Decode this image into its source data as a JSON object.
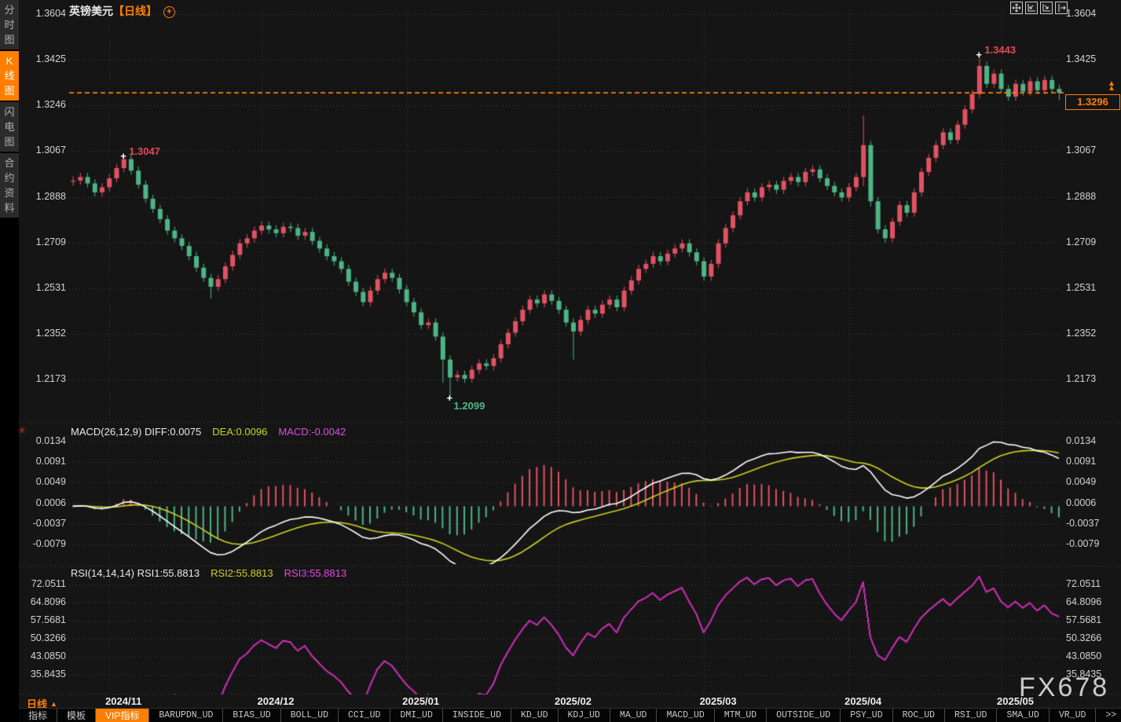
{
  "title": {
    "symbol": "英镑美元",
    "period_tag": "【日线】"
  },
  "sidebar": {
    "items": [
      {
        "name": "time-chart",
        "label": "分时图",
        "selected": false
      },
      {
        "name": "kline-chart",
        "label": "K线图",
        "selected": true
      },
      {
        "name": "lightning-chart",
        "label": "闪电图",
        "selected": false
      },
      {
        "name": "contract-info",
        "label": "合约资料",
        "selected": false
      }
    ]
  },
  "header_icons": [
    "move-tool",
    "fit-left",
    "fit-right",
    "shift-right"
  ],
  "price_axis": {
    "labels": [
      "1.3604",
      "1.3425",
      "1.3246",
      "1.3067",
      "1.2888",
      "1.2709",
      "1.2531",
      "1.2352",
      "1.2173"
    ]
  },
  "annotations": {
    "high1": "1.3047",
    "high2": "1.3443",
    "low": "1.2099",
    "last_price": "1.3296"
  },
  "macd": {
    "label": "MACD(26,12,9)",
    "diff_label": "DIFF:0.0075",
    "dea_label": "DEA:0.0096",
    "macd_label": "MACD:-0.0042",
    "axis": [
      "0.0134",
      "0.0091",
      "0.0049",
      "0.0006",
      "-0.0037",
      "-0.0079"
    ]
  },
  "rsi": {
    "label": "RSI(14,14,14)",
    "rsi1_label": "RSI1:55.8813",
    "rsi2_label": "RSI2:55.8813",
    "rsi3_label": "RSI3:55.8813",
    "axis": [
      "72.0511",
      "64.8096",
      "57.5681",
      "50.3266",
      "43.0850",
      "35.8435"
    ]
  },
  "x_axis": {
    "labels": [
      "2024/11",
      "2024/12",
      "2025/01",
      "2025/02",
      "2025/03",
      "2025/04",
      "2025/05"
    ],
    "candle_indices": [
      7,
      28,
      48,
      69,
      89,
      109,
      130
    ]
  },
  "bottom": {
    "period_label": "日线",
    "period_arrow": "▲",
    "tabs": [
      {
        "label": "指标",
        "selected": false,
        "mono": false
      },
      {
        "label": "模板",
        "selected": false,
        "mono": false
      },
      {
        "label": "VIP指标",
        "selected": true,
        "mono": false
      },
      {
        "label": "BARUPDN_UD"
      },
      {
        "label": "BIAS_UD"
      },
      {
        "label": "BOLL_UD"
      },
      {
        "label": "CCI_UD"
      },
      {
        "label": "DMI_UD"
      },
      {
        "label": "INSIDE_UD"
      },
      {
        "label": "KD_UD"
      },
      {
        "label": "KDJ_UD"
      },
      {
        "label": "MA_UD"
      },
      {
        "label": "MACD_UD"
      },
      {
        "label": "MTM_UD"
      },
      {
        "label": "OUTSIDE_UD"
      },
      {
        "label": "PSY_UD"
      },
      {
        "label": "ROC_UD"
      },
      {
        "label": "RSI_UD"
      },
      {
        "label": "SMA_UD"
      },
      {
        "label": "VR_UD"
      },
      {
        "label": ">>"
      }
    ]
  },
  "watermark": "FX678",
  "colors": {
    "up": "#e05263",
    "down": "#4eb485",
    "accent": "#ff7e00",
    "diff_line": "#ffffff",
    "dea_line": "#cdd31f",
    "rsi_line": "#d400d4",
    "grid": "#3a3a3a",
    "bg": "#151515",
    "ann_red": "#e84856",
    "ann_green": "#4db886"
  },
  "chart_data": {
    "type": "candlestick+indicators",
    "symbol": "GBPUSD",
    "timeframe": "daily",
    "price_range": [
      1.2173,
      1.3604
    ],
    "macd_range": [
      -0.0079,
      0.0134
    ],
    "rsi_range": [
      35.8435,
      72.0511
    ],
    "open_first": 1.2948,
    "default_wick": 0.0016,
    "closes": [
      1.2952,
      1.2966,
      1.2941,
      1.2906,
      1.2926,
      1.2961,
      1.3001,
      1.3036,
      1.2991,
      1.2936,
      1.2881,
      1.2841,
      1.2801,
      1.2756,
      1.2726,
      1.2696,
      1.2656,
      1.2611,
      1.2571,
      1.2536,
      1.2566,
      1.2616,
      1.2661,
      1.2706,
      1.2726,
      1.2756,
      1.2776,
      1.2761,
      1.2746,
      1.2771,
      1.2766,
      1.2736,
      1.2751,
      1.2716,
      1.2686,
      1.2656,
      1.2636,
      1.2606,
      1.2556,
      1.2516,
      1.2476,
      1.2521,
      1.2566,
      1.2591,
      1.2571,
      1.2526,
      1.2476,
      1.2436,
      1.2386,
      1.2396,
      1.2341,
      1.2251,
      1.2181,
      1.2191,
      1.2176,
      1.2211,
      1.2236,
      1.2226,
      1.2256,
      1.2311,
      1.2356,
      1.2401,
      1.2446,
      1.2486,
      1.2471,
      1.2506,
      1.2481,
      1.2446,
      1.2396,
      1.2361,
      1.2406,
      1.2446,
      1.2431,
      1.2466,
      1.2486,
      1.2456,
      1.2521,
      1.2561,
      1.2606,
      1.2626,
      1.2656,
      1.2636,
      1.2666,
      1.2686,
      1.2706,
      1.2671,
      1.2636,
      1.2576,
      1.2626,
      1.2706,
      1.2766,
      1.2816,
      1.2871,
      1.2906,
      1.2886,
      1.2926,
      1.2936,
      1.2916,
      1.2951,
      1.2966,
      1.2946,
      1.2986,
      1.2996,
      1.2961,
      1.2931,
      1.2906,
      1.2886,
      1.2926,
      1.2966,
      1.3091,
      1.2871,
      1.2761,
      1.2726,
      1.2791,
      1.2856,
      1.2826,
      1.2906,
      1.2986,
      1.3041,
      1.3091,
      1.3141,
      1.3111,
      1.3171,
      1.3231,
      1.3291,
      1.3401,
      1.3331,
      1.3371,
      1.3311,
      1.3281,
      1.3331,
      1.3301,
      1.3341,
      1.3306,
      1.3346,
      1.3311,
      1.3296
    ],
    "wick_overrides": {
      "7": {
        "h": 1.3047
      },
      "19": {
        "l": 1.249
      },
      "40": {
        "l": 1.2461
      },
      "51": {
        "l": 1.216
      },
      "52": {
        "l": 1.2099
      },
      "69": {
        "l": 1.2251
      },
      "109": {
        "h": 1.3207,
        "l": 1.2931
      },
      "110": {
        "l": 1.2851
      },
      "112": {
        "l": 1.2709
      },
      "125": {
        "h": 1.3443
      },
      "136": {
        "l": 1.3266
      }
    },
    "last_price": 1.3296,
    "marked_points": [
      {
        "index": 7,
        "price": 1.3047,
        "kind": "swing-high"
      },
      {
        "index": 52,
        "price": 1.2099,
        "kind": "swing-low"
      },
      {
        "index": 125,
        "price": 1.3443,
        "kind": "swing-high"
      }
    ],
    "indicators": [
      {
        "name": "MACD",
        "params": [
          26,
          12,
          9
        ],
        "diff": 0.0075,
        "dea": 0.0096,
        "macd": -0.0042
      },
      {
        "name": "RSI",
        "params": [
          14,
          14,
          14
        ],
        "rsi1": 55.8813,
        "rsi2": 55.8813,
        "rsi3": 55.8813
      }
    ]
  }
}
